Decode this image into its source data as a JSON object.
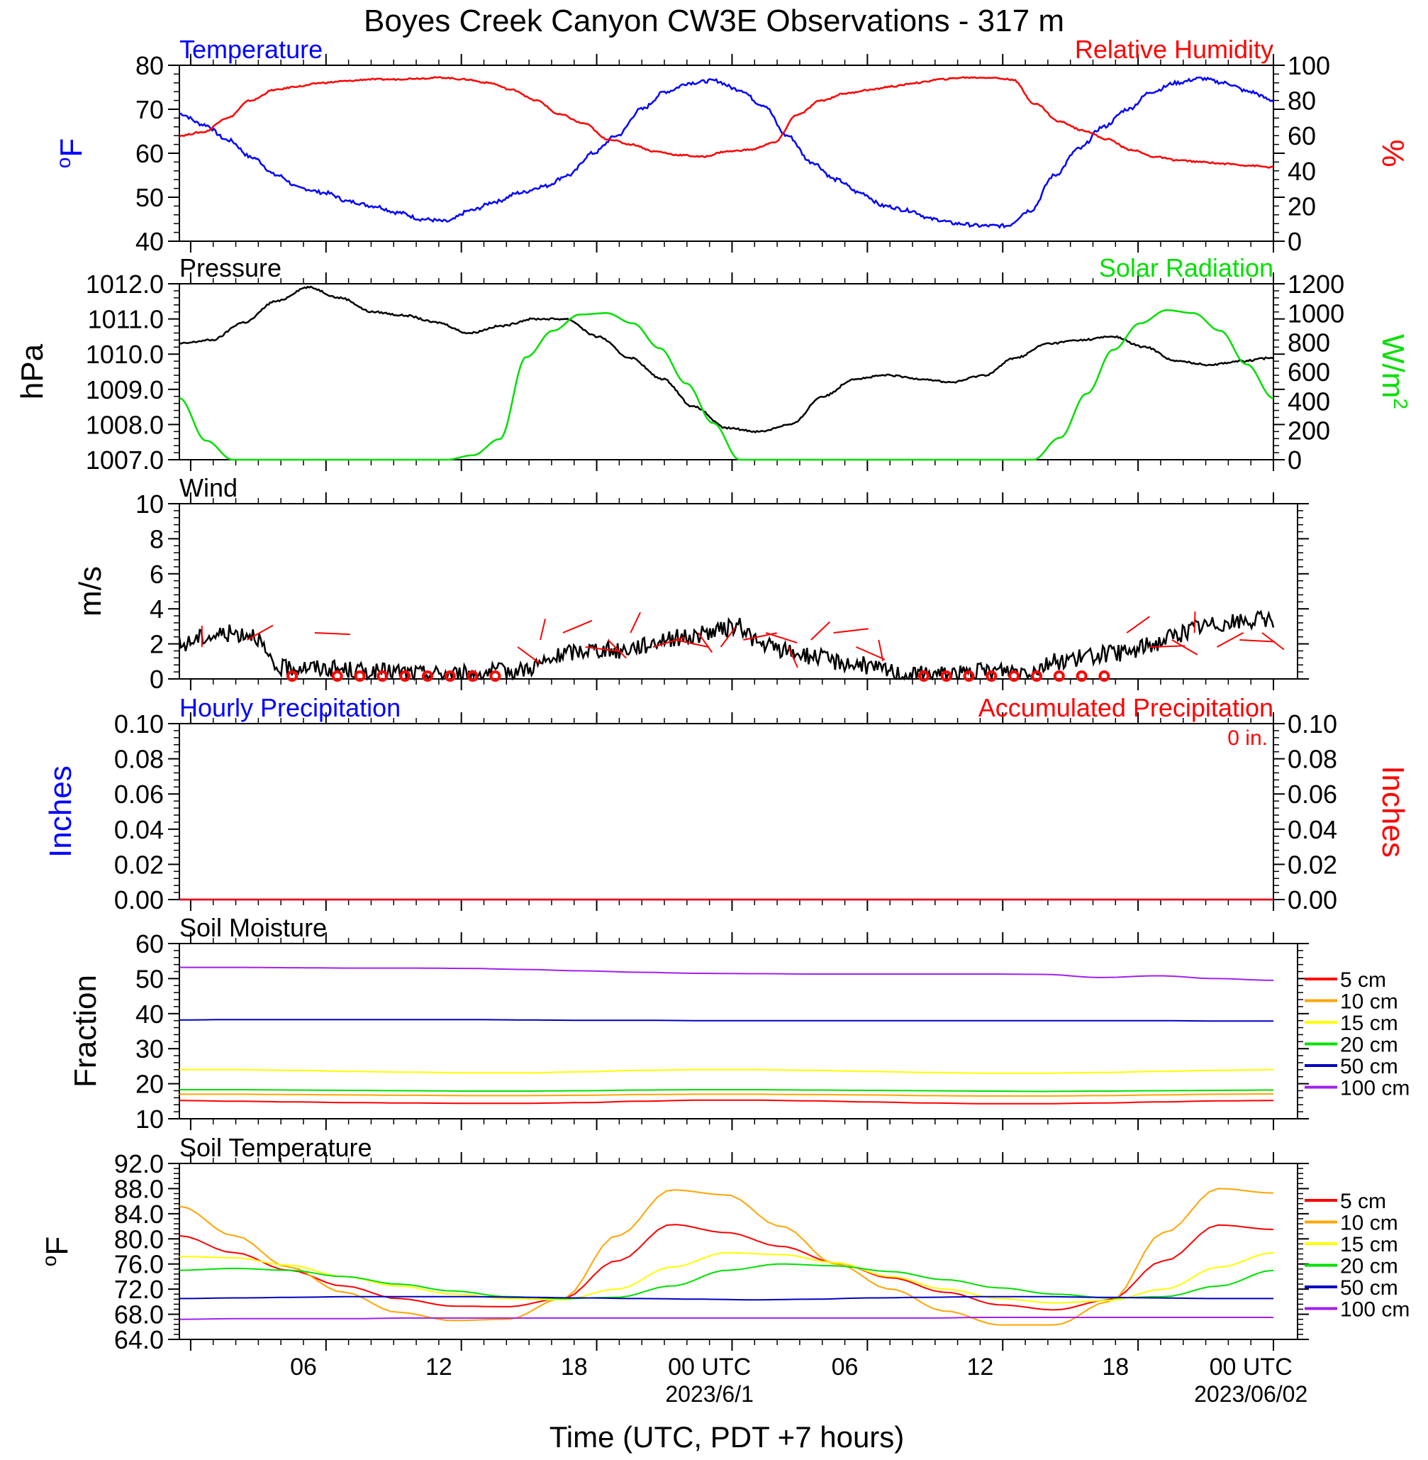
{
  "title": "Boyes Creek Canyon CW3E Observations - 317 m",
  "xlabel": "Time (UTC, PDT +7 hours)",
  "x_ticks": [
    "06",
    "12",
    "18",
    "00 UTC",
    "06",
    "12",
    "18",
    "00 UTC"
  ],
  "dates": [
    "2023/6/1",
    "2023/06/02"
  ],
  "colors": {
    "blue": "#0000ff",
    "red": "#ff0000",
    "green": "#00e000",
    "black": "#000000",
    "orange": "#ffa500",
    "yellow": "#ffff00",
    "purple": "#a020f0",
    "nblue": "#0000c0"
  },
  "chart_data": [
    {
      "type": "line",
      "title_left": "Temperature",
      "title_right": "Relative Humidity",
      "ylabel_left": "oF",
      "ylabel_right": "%",
      "ylim_left": [
        40,
        80
      ],
      "ylim_right": [
        0,
        100
      ],
      "yticks_left": [
        "40",
        "50",
        "60",
        "70",
        "80"
      ],
      "yticks_right": [
        "0",
        "20",
        "40",
        "60",
        "80",
        "100"
      ],
      "x_hours": [
        1,
        2,
        3,
        4,
        5,
        6,
        7,
        8,
        9,
        10,
        11,
        12,
        13,
        14,
        15,
        16,
        17,
        18,
        19,
        20,
        21,
        22,
        23,
        24,
        25,
        26,
        27,
        28,
        29,
        30,
        31,
        32,
        33,
        34,
        35,
        36,
        37,
        38,
        39,
        40,
        41,
        42,
        43,
        44,
        45,
        46,
        47,
        48,
        49
      ],
      "series": [
        {
          "name": "Temperature",
          "axis": "left",
          "color": "blue",
          "values": [
            69,
            66.5,
            63,
            59,
            55,
            52,
            51,
            49,
            48,
            46.5,
            45,
            44.5,
            47,
            49,
            51,
            52.5,
            55,
            60,
            64,
            70,
            74,
            76,
            76.5,
            74.5,
            71,
            64,
            58,
            54,
            51,
            48,
            47,
            45,
            44,
            43.5,
            43.5,
            47,
            55,
            61,
            66,
            70,
            74,
            76,
            77,
            76,
            74,
            72
          ]
        },
        {
          "name": "Relative Humidity",
          "axis": "right",
          "color": "red",
          "values": [
            60,
            62,
            70,
            80,
            86,
            88,
            90,
            91,
            92,
            92,
            92.5,
            93,
            92,
            90,
            86,
            80,
            72,
            67,
            58,
            55,
            51,
            49,
            48,
            51,
            52,
            56,
            72,
            80,
            84,
            86,
            88,
            90,
            92,
            93,
            93,
            92,
            78,
            68,
            63,
            58,
            52,
            48,
            46,
            45,
            44,
            43,
            42
          ]
        }
      ]
    },
    {
      "type": "line",
      "title_left": "Pressure",
      "title_right": "Solar Radiation",
      "ylabel_left": "hPa",
      "ylabel_right": "W/m2",
      "ylim_left": [
        1007,
        1012
      ],
      "ylim_right": [
        0,
        1200
      ],
      "yticks_left": [
        "1007.0",
        "1008.0",
        "1009.0",
        "1010.0",
        "1011.0",
        "1012.0"
      ],
      "yticks_right": [
        "0",
        "200",
        "400",
        "600",
        "800",
        "1000",
        "1200"
      ],
      "series": [
        {
          "name": "Pressure",
          "axis": "left",
          "color": "black",
          "values": [
            1010.3,
            1010.4,
            1010.9,
            1011.5,
            1011.9,
            1011.6,
            1011.2,
            1011.1,
            1010.9,
            1010.6,
            1010.8,
            1011.0,
            1011.0,
            1010.5,
            1009.9,
            1009.3,
            1008.5,
            1007.9,
            1007.8,
            1008.0,
            1008.8,
            1009.3,
            1009.4,
            1009.3,
            1009.2,
            1009.4,
            1009.9,
            1010.3,
            1010.4,
            1010.5,
            1010.2,
            1009.8,
            1009.7,
            1009.8,
            1009.9
          ]
        },
        {
          "name": "Solar Radiation",
          "axis": "right",
          "color": "green",
          "values": [
            420,
            130,
            0,
            0,
            0,
            0,
            0,
            0,
            0,
            0,
            0,
            30,
            140,
            700,
            880,
            990,
            1000,
            930,
            760,
            520,
            250,
            0,
            0,
            0,
            0,
            0,
            0,
            0,
            0,
            0,
            0,
            0,
            0,
            150,
            450,
            750,
            930,
            1020,
            1000,
            880,
            650,
            420
          ]
        }
      ]
    },
    {
      "type": "line",
      "title_left": "Wind",
      "ylabel_left": "m/s",
      "ylim_left": [
        0,
        10
      ],
      "yticks_left": [
        "0",
        "2",
        "4",
        "6",
        "8",
        "10"
      ],
      "series": [
        {
          "name": "Wind",
          "axis": "left",
          "color": "black",
          "values": [
            1.9,
            2.4,
            2.6,
            2.6,
            0.6,
            0.7,
            0.6,
            0.5,
            0.4,
            0.4,
            0.3,
            0.3,
            0.3,
            0.4,
            0.5,
            0.9,
            1.5,
            1.7,
            1.6,
            1.9,
            2.3,
            2.4,
            2.7,
            3.0,
            1.9,
            1.6,
            1.3,
            1.0,
            0.8,
            0.5,
            0.2,
            0.3,
            0.3,
            0.4,
            0.5,
            0.5,
            1.0,
            1.2,
            1.4,
            1.5,
            2.0,
            2.5,
            3.0,
            3.2,
            3.3,
            3.4
          ]
        }
      ],
      "barbs": {
        "color": "red",
        "calm_hours": [
          5,
          7,
          8,
          9,
          10,
          11,
          12,
          13,
          14,
          33,
          34,
          35,
          36,
          37,
          38,
          39,
          40,
          41
        ]
      }
    },
    {
      "type": "line",
      "title_left": "Hourly Precipitation",
      "title_right": "Accumulated Precipitation",
      "annotation": "0 in.",
      "ylabel_left": "Inches",
      "ylabel_right": "Inches",
      "ylim_left": [
        0,
        0.1
      ],
      "ylim_right": [
        0,
        0.1
      ],
      "yticks_left": [
        "0.00",
        "0.02",
        "0.04",
        "0.06",
        "0.08",
        "0.10"
      ],
      "yticks_right": [
        "0.00",
        "0.02",
        "0.04",
        "0.06",
        "0.08",
        "0.10"
      ],
      "series": [
        {
          "name": "Hourly Precipitation",
          "axis": "left",
          "color": "blue",
          "values": [
            0,
            0
          ]
        },
        {
          "name": "Accumulated Precipitation",
          "axis": "right",
          "color": "red",
          "values": [
            0,
            0
          ]
        }
      ]
    },
    {
      "type": "line",
      "title_left": "Soil Moisture",
      "ylabel_left": "Fraction",
      "ylim_left": [
        10,
        60
      ],
      "yticks_left": [
        "10",
        "20",
        "30",
        "40",
        "50",
        "60"
      ],
      "legend": [
        "5 cm",
        "10 cm",
        "15 cm",
        "20 cm",
        "50 cm",
        "100 cm"
      ],
      "series": [
        {
          "name": "5 cm",
          "color": "red",
          "values": [
            15.2,
            15.0,
            14.8,
            14.6,
            14.5,
            14.4,
            14.4,
            14.6,
            15.0,
            15.3,
            15.3,
            15.1,
            14.8,
            14.5,
            14.3,
            14.3,
            14.5,
            14.8,
            15.1,
            15.2
          ]
        },
        {
          "name": "10 cm",
          "color": "orange",
          "values": [
            17.0,
            17.0,
            16.9,
            16.8,
            16.7,
            16.6,
            16.6,
            16.7,
            16.9,
            17.0,
            17.0,
            16.9,
            16.8,
            16.6,
            16.5,
            16.5,
            16.6,
            16.8,
            17.0,
            17.1
          ]
        },
        {
          "name": "15 cm",
          "color": "yellow",
          "values": [
            24.0,
            24.0,
            23.8,
            23.5,
            23.3,
            23.1,
            23.1,
            23.4,
            23.8,
            24.0,
            24.0,
            23.8,
            23.5,
            23.2,
            23.0,
            23.0,
            23.2,
            23.5,
            23.8,
            24.0
          ]
        },
        {
          "name": "20 cm",
          "color": "green",
          "values": [
            18.3,
            18.3,
            18.2,
            18.1,
            18.0,
            17.9,
            17.9,
            18.0,
            18.2,
            18.3,
            18.3,
            18.2,
            18.1,
            18.0,
            17.9,
            17.8,
            17.9,
            18.0,
            18.1,
            18.2
          ]
        },
        {
          "name": "50 cm",
          "color": "nblue",
          "values": [
            38.2,
            38.3,
            38.3,
            38.3,
            38.3,
            38.3,
            38.2,
            38.1,
            38.1,
            38.0,
            38.0,
            38.0,
            38.0,
            38.0,
            38.0,
            38.0,
            38.0,
            38.0,
            37.9,
            37.9
          ]
        },
        {
          "name": "100 cm",
          "color": "purple",
          "values": [
            53.2,
            53.2,
            53.1,
            53.0,
            53.0,
            52.9,
            52.6,
            52.2,
            51.8,
            51.5,
            51.4,
            51.3,
            51.3,
            51.3,
            51.3,
            51.2,
            50.3,
            50.8,
            50.0,
            49.5
          ]
        }
      ]
    },
    {
      "type": "line",
      "title_left": "Soil Temperature",
      "ylabel_left": "oF",
      "ylim_left": [
        64,
        92
      ],
      "yticks_left": [
        "64.0",
        "68.0",
        "72.0",
        "76.0",
        "80.0",
        "84.0",
        "88.0",
        "92.0"
      ],
      "legend": [
        "5 cm",
        "10 cm",
        "15 cm",
        "20 cm",
        "50 cm",
        "100 cm"
      ],
      "series": [
        {
          "name": "5 cm",
          "color": "red",
          "values": [
            80.5,
            77.8,
            75.0,
            72.5,
            70.5,
            69.3,
            69.2,
            70.5,
            76.5,
            82.3,
            81.0,
            78.8,
            76.2,
            73.8,
            71.5,
            69.5,
            68.7,
            70.3,
            76.5,
            82.2,
            81.5
          ]
        },
        {
          "name": "10 cm",
          "color": "orange",
          "values": [
            85.2,
            80.5,
            75.5,
            71.5,
            68.3,
            67.0,
            67.2,
            70.5,
            80.5,
            87.8,
            87.0,
            82.0,
            76.0,
            72.0,
            68.5,
            66.3,
            66.3,
            70.0,
            81.0,
            88.0,
            87.3
          ]
        },
        {
          "name": "15 cm",
          "color": "yellow",
          "values": [
            77.2,
            77.0,
            75.8,
            74.0,
            72.5,
            71.2,
            70.5,
            70.3,
            72.0,
            75.5,
            77.8,
            77.5,
            76.2,
            74.0,
            72.0,
            70.5,
            69.8,
            70.2,
            72.0,
            75.5,
            77.8
          ]
        },
        {
          "name": "20 cm",
          "color": "green",
          "values": [
            75.0,
            75.3,
            75.0,
            74.0,
            72.8,
            71.7,
            70.8,
            70.5,
            70.7,
            72.5,
            75.0,
            76.0,
            75.7,
            74.8,
            73.5,
            72.2,
            71.2,
            70.6,
            70.8,
            72.5,
            75.0
          ]
        },
        {
          "name": "50 cm",
          "color": "nblue",
          "values": [
            70.5,
            70.6,
            70.7,
            70.8,
            70.8,
            70.8,
            70.7,
            70.6,
            70.5,
            70.4,
            70.3,
            70.4,
            70.6,
            70.7,
            70.8,
            70.8,
            70.7,
            70.6,
            70.5,
            70.5
          ]
        },
        {
          "name": "100 cm",
          "color": "purple",
          "values": [
            67.2,
            67.3,
            67.3,
            67.3,
            67.4,
            67.4,
            67.4,
            67.4,
            67.4,
            67.4,
            67.4,
            67.4,
            67.4,
            67.4,
            67.5,
            67.5,
            67.5,
            67.5,
            67.5,
            67.5
          ]
        }
      ]
    }
  ]
}
